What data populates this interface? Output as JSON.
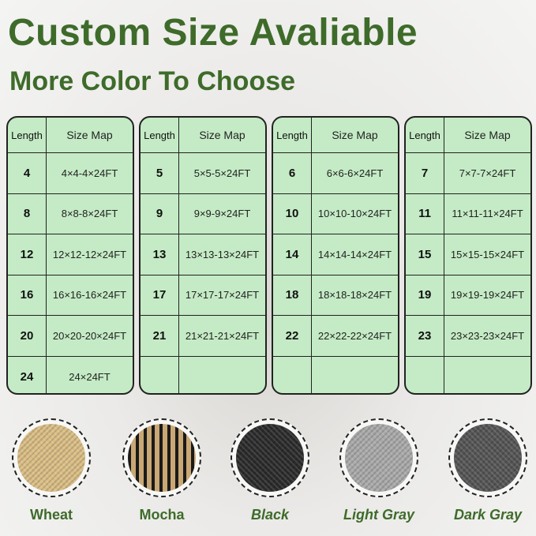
{
  "headline": "Custom Size Avaliable",
  "subheadline": "More Color To Choose",
  "table_headers": {
    "length": "Length",
    "size_map": "Size Map"
  },
  "tables": [
    [
      [
        "4",
        "4×4-4×24FT"
      ],
      [
        "8",
        "8×8-8×24FT"
      ],
      [
        "12",
        "12×12-12×24FT"
      ],
      [
        "16",
        "16×16-16×24FT"
      ],
      [
        "20",
        "20×20-20×24FT"
      ],
      [
        "24",
        "24×24FT"
      ]
    ],
    [
      [
        "5",
        "5×5-5×24FT"
      ],
      [
        "9",
        "9×9-9×24FT"
      ],
      [
        "13",
        "13×13-13×24FT"
      ],
      [
        "17",
        "17×17-17×24FT"
      ],
      [
        "21",
        "21×21-21×24FT"
      ],
      [
        "",
        ""
      ]
    ],
    [
      [
        "6",
        "6×6-6×24FT"
      ],
      [
        "10",
        "10×10-10×24FT"
      ],
      [
        "14",
        "14×14-14×24FT"
      ],
      [
        "18",
        "18×18-18×24FT"
      ],
      [
        "22",
        "22×22-22×24FT"
      ],
      [
        "",
        ""
      ]
    ],
    [
      [
        "7",
        "7×7-7×24FT"
      ],
      [
        "11",
        "11×11-11×24FT"
      ],
      [
        "15",
        "15×15-15×24FT"
      ],
      [
        "19",
        "19×19-19×24FT"
      ],
      [
        "23",
        "23×23-23×24FT"
      ],
      [
        "",
        ""
      ]
    ]
  ],
  "colors": [
    {
      "label": "Wheat",
      "swatch": "#d9bd84",
      "italic": false
    },
    {
      "label": "Mocha",
      "swatch": "#8a7350",
      "italic": false
    },
    {
      "label": "Black",
      "swatch": "#2b2b2b",
      "italic": true
    },
    {
      "label": "Light Gray",
      "swatch": "#a9a9a9",
      "italic": true
    },
    {
      "label": "Dark Gray",
      "swatch": "#555555",
      "italic": true
    }
  ]
}
